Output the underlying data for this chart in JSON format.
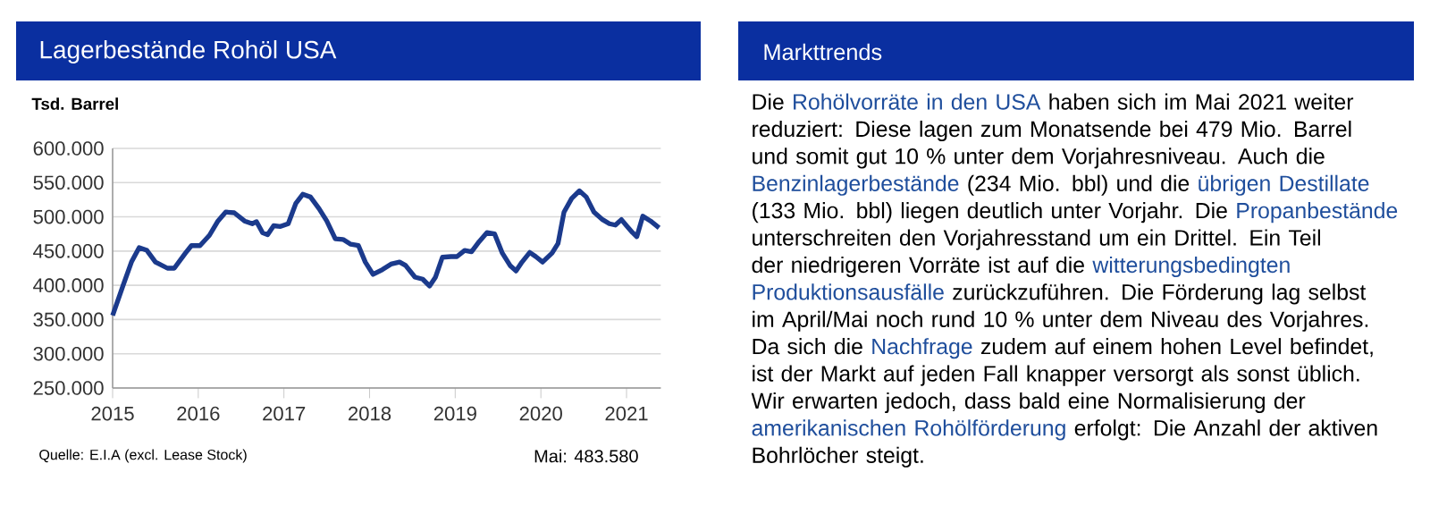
{
  "chart_data": [
    {
      "type": "line",
      "title": "Lagerbestände Rohöl USA",
      "ylabel": "Tsd. Barrel",
      "x": [
        2015.0,
        2015.12,
        2015.22,
        2015.31,
        2015.4,
        2015.5,
        2015.64,
        2015.72,
        2015.85,
        2015.92,
        2016.02,
        2016.13,
        2016.23,
        2016.32,
        2016.42,
        2016.54,
        2016.63,
        2016.68,
        2016.75,
        2016.81,
        2016.88,
        2016.96,
        2017.05,
        2017.14,
        2017.22,
        2017.31,
        2017.41,
        2017.5,
        2017.6,
        2017.69,
        2017.78,
        2017.87,
        2017.95,
        2018.04,
        2018.15,
        2018.25,
        2018.35,
        2018.42,
        2018.53,
        2018.62,
        2018.7,
        2018.77,
        2018.85,
        2018.95,
        2019.02,
        2019.11,
        2019.19,
        2019.28,
        2019.37,
        2019.46,
        2019.55,
        2019.64,
        2019.71,
        2019.78,
        2019.87,
        2019.94,
        2020.02,
        2020.13,
        2020.2,
        2020.27,
        2020.36,
        2020.45,
        2020.53,
        2020.62,
        2020.72,
        2020.8,
        2020.87,
        2020.94,
        2021.0,
        2021.07,
        2021.12,
        2021.19,
        2021.28,
        2021.38
      ],
      "series": [
        {
          "color": "#1b3a8c",
          "values": [
            356000,
            399000,
            434000,
            455000,
            451000,
            434000,
            425000,
            425000,
            447000,
            458000,
            458000,
            473000,
            494000,
            507000,
            506000,
            494000,
            490000,
            493000,
            477000,
            474000,
            487000,
            486000,
            490000,
            520000,
            533000,
            529000,
            512000,
            494000,
            468000,
            467000,
            460000,
            458000,
            434000,
            416000,
            423000,
            431000,
            434000,
            429000,
            412000,
            409000,
            399000,
            412000,
            441000,
            442000,
            442000,
            451000,
            449000,
            464000,
            477000,
            475000,
            447000,
            429000,
            421000,
            434000,
            448000,
            442000,
            434000,
            447000,
            461000,
            507000,
            527000,
            538000,
            529000,
            507000,
            496000,
            490000,
            488000,
            496000,
            487000,
            477000,
            471000,
            501000,
            494000,
            484000
          ]
        }
      ],
      "xlim": [
        2015,
        2021.4
      ],
      "ylim": [
        250000,
        600000
      ],
      "xticks": [
        2015,
        2016,
        2017,
        2018,
        2019,
        2020,
        2021
      ],
      "yticks": [
        {
          "value": 250000,
          "label": "250.000"
        },
        {
          "value": 300000,
          "label": "300.000"
        },
        {
          "value": 350000,
          "label": "350.000"
        },
        {
          "value": 400000,
          "label": "400.000"
        },
        {
          "value": 450000,
          "label": "450.000"
        },
        {
          "value": 500000,
          "label": "500.000"
        },
        {
          "value": 550000,
          "label": "550.000"
        },
        {
          "value": 600000,
          "label": "600.000"
        }
      ],
      "grid": "y",
      "annotations": [
        "Quelle: E.I.A  (excl. Lease Stock)",
        "Mai: 483.580"
      ]
    },
    {
      "type": "other",
      "title": "Markttrends",
      "annotations": [
        "Die",
        "Rohölvorräte in den USA",
        "haben sich im Mai 2021 weiter reduziert: Diese lagen zum Monatsende bei 479 Mio. Barrel und somit gut 10 % unter dem Vorjahresniveau. Auch die",
        "Benzinlagerbestände",
        "(234 Mio. bbl) und die",
        "übrigen Destillate",
        "(133 Mio. bbl) liegen deutlich unter Vorjahr. Die",
        "Propanbestände",
        "unterschreiten den Vorjahresstand um ein Drittel. Ein Teil der niedrigeren Vorräte ist auf die",
        "witterungsbedingten Produktionsausfälle",
        "zurückzuführen. Die Förderung lag selbst im April/Mai noch rund 10 % unter dem Niveau des Vorjahres. Da sich die",
        "Nachfrage",
        "zudem auf einem hohen Level befindet, ist der Markt auf jeden Fall knapper versorgt als sonst üblich. Wir erwarten jedoch, dass bald eine Normalisierung der",
        "amerikanischen Rohölförderung",
        "erfolgt: Die Anzahl der aktiven Bohrlöcher steigt."
      ]
    }
  ]
}
